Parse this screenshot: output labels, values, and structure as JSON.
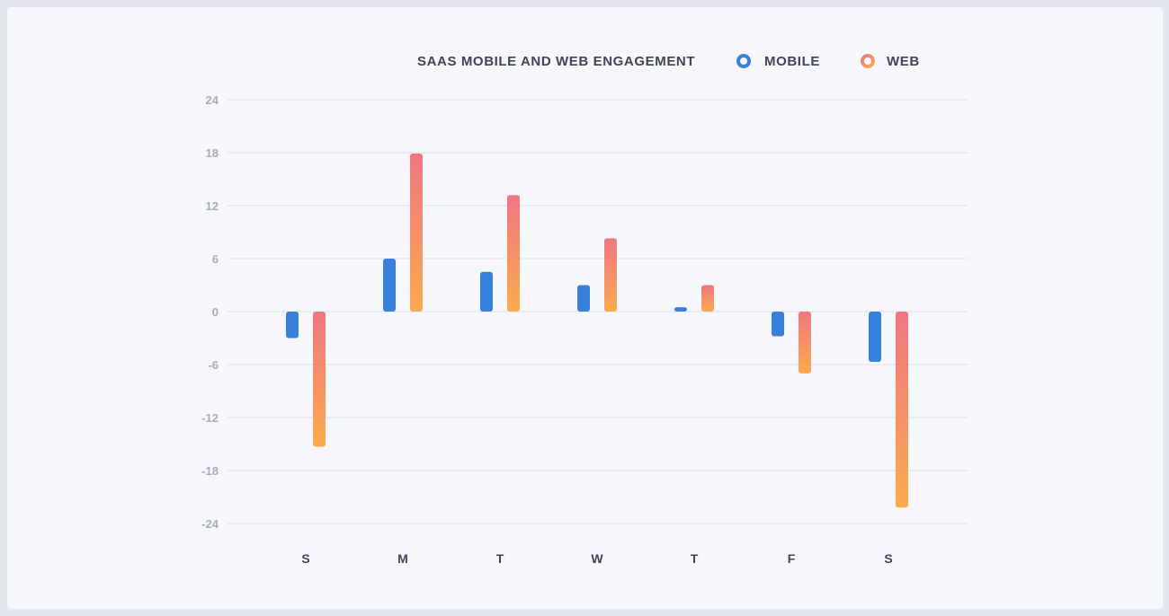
{
  "chart_data": {
    "type": "bar",
    "title": "SAAS MOBILE AND WEB ENGAGEMENT",
    "categories": [
      "S",
      "M",
      "T",
      "W",
      "T",
      "F",
      "S"
    ],
    "series": [
      {
        "name": "MOBILE",
        "values": [
          -3,
          6,
          4.5,
          3,
          0.5,
          -2.8,
          -5.7
        ]
      },
      {
        "name": "WEB",
        "values": [
          -15.3,
          17.9,
          13.2,
          8.3,
          3,
          -7,
          -22.2
        ]
      }
    ],
    "ylim": [
      -24,
      24
    ],
    "yticks": [
      24,
      18,
      12,
      6,
      0,
      -6,
      -12,
      -18,
      -24
    ],
    "grid": true,
    "legend_position": "top-right",
    "colors": {
      "mobile": "#3a7fd9",
      "web_top": "#f07682",
      "web_bottom": "#fbaa4e",
      "grid": "#e3e6ee",
      "tick": "#a7abbb",
      "label": "#3f4459"
    }
  }
}
